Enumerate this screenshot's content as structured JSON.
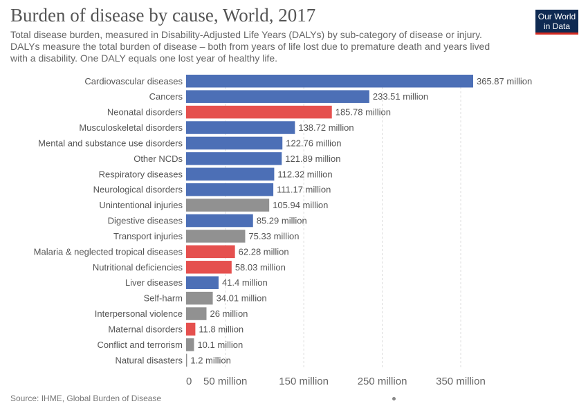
{
  "header": {
    "title": "Burden of disease by cause, World, 2017",
    "subtitle": "Total disease burden, measured in Disability-Adjusted Life Years (DALYs) by sub-category of disease or injury. DALYs measure the total burden of disease – both from years of life lost due to premature death and years lived with a disability. One DALY equals one lost year of healthy life."
  },
  "logo": {
    "line1": "Our World",
    "line2": "in Data"
  },
  "footer": {
    "source": "Source: IHME, Global Burden of Disease"
  },
  "colors": {
    "blue": "#4c6fb6",
    "red": "#e5504e",
    "gray": "#919191",
    "logo_bg": "#0f2a52",
    "logo_accent": "#d42b21"
  },
  "chart_data": {
    "type": "bar",
    "orientation": "horizontal",
    "unit": "million DALYs",
    "categories": [
      "Cardiovascular diseases",
      "Cancers",
      "Neonatal disorders",
      "Musculoskeletal disorders",
      "Mental and substance use disorders",
      "Other NCDs",
      "Respiratory diseases",
      "Neurological disorders",
      "Unintentional injuries",
      "Digestive diseases",
      "Transport injuries",
      "Malaria & neglected tropical diseases",
      "Nutritional deficiencies",
      "Liver diseases",
      "Self-harm",
      "Interpersonal violence",
      "Maternal disorders",
      "Conflict and terrorism",
      "Natural disasters"
    ],
    "values": [
      365.87,
      233.51,
      185.78,
      138.72,
      122.76,
      121.89,
      112.32,
      111.17,
      105.94,
      85.29,
      75.33,
      62.28,
      58.03,
      41.4,
      34.01,
      26,
      11.8,
      10.1,
      1.2
    ],
    "value_labels": [
      "365.87 million",
      "233.51 million",
      "185.78 million",
      "138.72 million",
      "122.76 million",
      "121.89 million",
      "112.32 million",
      "111.17 million",
      "105.94 million",
      "85.29 million",
      "75.33 million",
      "62.28 million",
      "58.03 million",
      "41.4 million",
      "34.01 million",
      "26 million",
      "11.8 million",
      "10.1 million",
      "1.2 million"
    ],
    "bar_colors": [
      "blue",
      "blue",
      "red",
      "blue",
      "blue",
      "blue",
      "blue",
      "blue",
      "gray",
      "blue",
      "gray",
      "red",
      "red",
      "blue",
      "gray",
      "gray",
      "red",
      "gray",
      "gray"
    ],
    "xticks": [
      0,
      50,
      150,
      250,
      350
    ],
    "xtick_labels": [
      "0",
      "50 million",
      "150 million",
      "250 million",
      "350 million"
    ],
    "xlim": [
      0,
      365.87
    ],
    "grid": true
  }
}
